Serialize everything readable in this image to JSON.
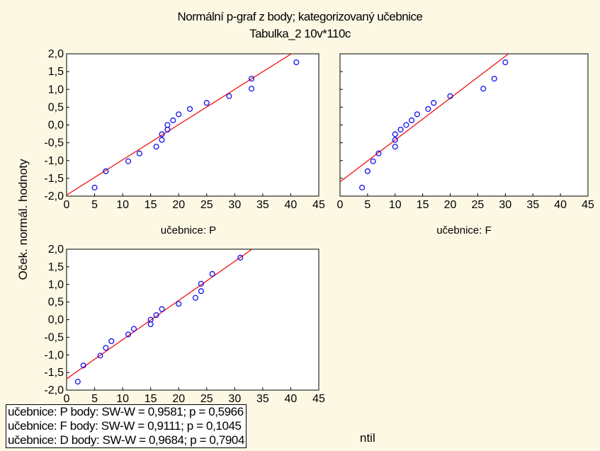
{
  "title": "Normální p-graf z body; kategorizovaný učebnice",
  "subtitle": "Tabulka_2 10v*110c",
  "ylabel": "Oček. normál. hodnoty",
  "stats_tail": "ntil",
  "stats": [
    "učebnice: P  body:  SW-W = 0,9581; p = 0,5966",
    "učebnice: F  body:  SW-W = 0,9111; p = 0,1045",
    "učebnice: D  body:  SW-W = 0,9684; p = 0,7904"
  ],
  "colors": {
    "point": "#1010ee",
    "line": "#ee1111",
    "background": "#fdf8e4"
  },
  "chart_data": [
    {
      "type": "scatter",
      "panel_label": "učebnice: P",
      "xlim": [
        0,
        45
      ],
      "ylim": [
        -2,
        2
      ],
      "xticks": [
        0,
        5,
        10,
        15,
        20,
        25,
        30,
        35,
        40,
        45
      ],
      "yticks": [
        -2,
        -1.5,
        -1,
        -0.5,
        0,
        0.5,
        1,
        1.5,
        2
      ],
      "tick_labels_x": [
        "0",
        "5",
        "10",
        "15",
        "20",
        "25",
        "30",
        "35",
        "40",
        "45"
      ],
      "tick_labels_y": [
        "-2,0",
        "-1,5",
        "-1,0",
        "-0,5",
        "0,0",
        "0,5",
        "1,0",
        "1,5",
        "2,0"
      ],
      "grid": false,
      "points": [
        [
          5,
          -1.76
        ],
        [
          7,
          -1.3
        ],
        [
          11,
          -1.02
        ],
        [
          13,
          -0.8
        ],
        [
          16,
          -0.61
        ],
        [
          17,
          -0.42
        ],
        [
          17,
          -0.26
        ],
        [
          18,
          -0.13
        ],
        [
          18,
          0.0
        ],
        [
          19,
          0.13
        ],
        [
          20,
          0.3
        ],
        [
          22,
          0.45
        ],
        [
          25,
          0.62
        ],
        [
          29,
          0.81
        ],
        [
          33,
          1.02
        ],
        [
          33,
          1.3
        ],
        [
          41,
          1.76
        ]
      ],
      "fit_line": [
        [
          0,
          -1.97
        ],
        [
          40,
          1.99
        ]
      ]
    },
    {
      "type": "scatter",
      "panel_label": "učebnice: F",
      "xlim": [
        0,
        45
      ],
      "ylim": [
        -2,
        2
      ],
      "xticks": [
        0,
        5,
        10,
        15,
        20,
        25,
        30,
        35,
        40,
        45
      ],
      "yticks": [
        -2,
        -1.5,
        -1,
        -0.5,
        0,
        0.5,
        1,
        1.5,
        2
      ],
      "tick_labels_x": [
        "0",
        "5",
        "10",
        "15",
        "20",
        "25",
        "30",
        "35",
        "40",
        "45"
      ],
      "tick_labels_y": [
        "-2,0",
        "-1,5",
        "-1,0",
        "-0,5",
        "0,0",
        "0,5",
        "1,0",
        "1,5",
        "2,0"
      ],
      "grid": false,
      "points": [
        [
          4,
          -1.76
        ],
        [
          5,
          -1.3
        ],
        [
          6,
          -1.02
        ],
        [
          7,
          -0.8
        ],
        [
          10,
          -0.61
        ],
        [
          10,
          -0.42
        ],
        [
          10,
          -0.26
        ],
        [
          11,
          -0.13
        ],
        [
          12,
          0.0
        ],
        [
          13,
          0.13
        ],
        [
          14,
          0.3
        ],
        [
          16,
          0.45
        ],
        [
          17,
          0.62
        ],
        [
          20,
          0.81
        ],
        [
          26,
          1.02
        ],
        [
          28,
          1.3
        ],
        [
          30,
          1.76
        ]
      ],
      "fit_line": [
        [
          0,
          -1.6
        ],
        [
          30.5,
          1.99
        ]
      ]
    },
    {
      "type": "scatter",
      "panel_label": "",
      "xlim": [
        0,
        45
      ],
      "ylim": [
        -2,
        2
      ],
      "xticks": [
        0,
        5,
        10,
        15,
        20,
        25,
        30,
        35,
        40,
        45
      ],
      "yticks": [
        -2,
        -1.5,
        -1,
        -0.5,
        0,
        0.5,
        1,
        1.5,
        2
      ],
      "tick_labels_x": [
        "0",
        "5",
        "10",
        "15",
        "20",
        "25",
        "30",
        "35",
        "40",
        "45"
      ],
      "tick_labels_y": [
        "-2,0",
        "-1,5",
        "-1,0",
        "-0,5",
        "0,0",
        "0,5",
        "1,0",
        "1,5",
        "2,0"
      ],
      "grid": false,
      "points": [
        [
          2,
          -1.76
        ],
        [
          3,
          -1.3
        ],
        [
          6,
          -1.02
        ],
        [
          7,
          -0.8
        ],
        [
          8,
          -0.61
        ],
        [
          11,
          -0.42
        ],
        [
          12,
          -0.26
        ],
        [
          15,
          -0.13
        ],
        [
          15,
          0.0
        ],
        [
          16,
          0.13
        ],
        [
          17,
          0.3
        ],
        [
          20,
          0.45
        ],
        [
          23,
          0.62
        ],
        [
          24,
          0.81
        ],
        [
          24,
          1.02
        ],
        [
          26,
          1.3
        ],
        [
          31,
          1.76
        ]
      ],
      "fit_line": [
        [
          0,
          -1.68
        ],
        [
          33,
          1.99
        ]
      ]
    }
  ]
}
